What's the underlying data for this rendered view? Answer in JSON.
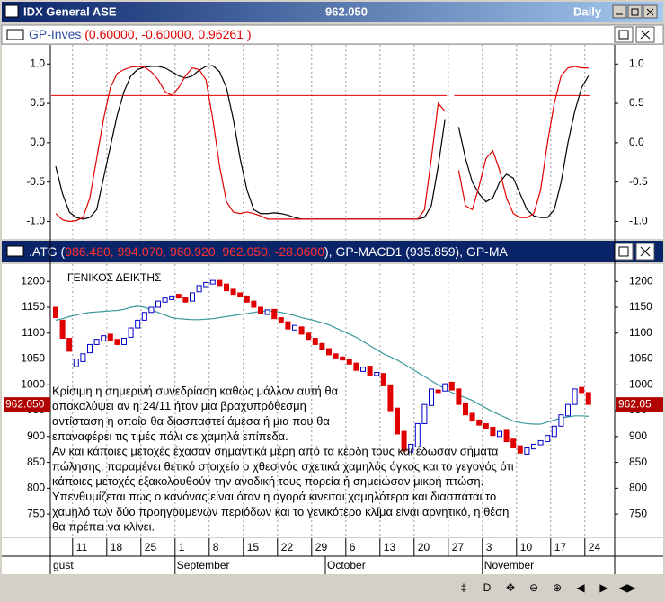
{
  "window": {
    "title": "IDX General ASE",
    "price": "962.050",
    "period": "Daily"
  },
  "oscillator": {
    "name": "GP-Inves",
    "params": "(0.60000, -0.60000, 0.96261 )",
    "ylim": [
      -1.2,
      1.22
    ],
    "yticks": [
      {
        "value": 1,
        "label": "1.0"
      },
      0.5,
      {
        "value": 0,
        "label": "0.0"
      },
      -0.5,
      {
        "value": -1,
        "label": "-1.0"
      }
    ],
    "levels": [
      0.6,
      -0.6
    ],
    "level_color": "#e00000",
    "series": [
      {
        "color": "#000000",
        "values": [
          -0.3,
          -0.65,
          -0.88,
          -0.95,
          -0.97,
          -0.95,
          -0.85,
          -0.45,
          -0.05,
          0.35,
          0.65,
          0.85,
          0.93,
          0.96,
          0.97,
          0.97,
          0.95,
          0.9,
          0.85,
          0.82,
          0.85,
          0.92,
          0.97,
          0.98,
          0.9,
          0.7,
          0.3,
          -0.2,
          -0.6,
          -0.85,
          -0.9,
          -0.9,
          -0.89,
          -0.9,
          -0.92,
          -0.95,
          -0.97,
          -0.97,
          -0.97,
          -0.97,
          -0.97,
          -0.97,
          -0.97,
          -0.97,
          -0.97,
          -0.97,
          -0.97,
          -0.97,
          -0.97,
          -0.97,
          -0.97,
          -0.97,
          -0.97,
          -0.97,
          -0.95,
          -0.8,
          -0.3,
          0.3,
          null,
          0.2,
          -0.2,
          -0.5,
          -0.65,
          -0.75,
          -0.7,
          -0.5,
          -0.4,
          -0.45,
          -0.65,
          -0.85,
          -0.93,
          -0.95,
          -0.95,
          -0.85,
          -0.5,
          0.0,
          0.4,
          0.7,
          0.85
        ]
      },
      {
        "color": "#e00000",
        "values": [
          -0.9,
          -0.98,
          -1.0,
          -0.99,
          -0.95,
          -0.7,
          -0.2,
          0.3,
          0.7,
          0.88,
          0.93,
          0.96,
          0.97,
          0.96,
          0.9,
          0.8,
          0.65,
          0.6,
          0.7,
          0.85,
          0.95,
          0.93,
          0.8,
          0.3,
          -0.3,
          -0.75,
          -0.88,
          -0.9,
          -0.88,
          -0.9,
          -0.93,
          -0.97,
          -0.97,
          -0.97,
          -0.97,
          -0.97,
          -0.97,
          -0.97,
          -0.97,
          -0.97,
          -0.97,
          -0.97,
          -0.97,
          -0.97,
          -0.97,
          -0.97,
          -0.97,
          -0.97,
          -0.97,
          -0.97,
          -0.97,
          -0.97,
          -0.97,
          -0.97,
          -0.85,
          -0.2,
          0.5,
          0.4,
          null,
          -0.35,
          -0.8,
          -0.85,
          -0.55,
          -0.2,
          -0.1,
          -0.35,
          -0.7,
          -0.9,
          -0.95,
          -0.95,
          -0.9,
          -0.6,
          0.0,
          0.5,
          0.85,
          0.95,
          0.97,
          0.95,
          0.95
        ]
      }
    ]
  },
  "price": {
    "header": {
      "symbol": ".ATG (",
      "values": "986.480, 994.070, 960.920, 962.050, -28.0600",
      "rest": "), GP-MACD1 (935.859), GP-MA"
    },
    "ylim": [
      705,
      1230
    ],
    "yticks": [
      1200,
      1150,
      1100,
      1050,
      1000,
      950,
      900,
      850,
      800,
      750
    ],
    "up_color": "#0000cc",
    "down_color": "#e00000",
    "open": [
      1150,
      1125,
      1090,
      1035,
      1045,
      1062,
      1078,
      1085,
      1098,
      1088,
      1078,
      1092,
      1110,
      1125,
      1140,
      1150,
      1160,
      1165,
      1175,
      1170,
      1162,
      1180,
      1190,
      1195,
      1202,
      1195,
      1185,
      1178,
      1172,
      1162,
      1150,
      1136,
      1146,
      1130,
      1122,
      1106,
      1112,
      1100,
      1090,
      1080,
      1070,
      1060,
      1054,
      1050,
      1042,
      1026,
      1036,
      1018,
      1022,
      1000,
      955,
      910,
      870,
      880,
      925,
      960,
      990,
      988,
      1005,
      992,
      965,
      945,
      932,
      925,
      918,
      900,
      912,
      895,
      882,
      866,
      876,
      884,
      890,
      900,
      920,
      940,
      962,
      995,
      985
    ],
    "close": [
      1130,
      1090,
      1065,
      1050,
      1060,
      1078,
      1088,
      1095,
      1085,
      1078,
      1090,
      1110,
      1125,
      1140,
      1150,
      1162,
      1168,
      1172,
      1168,
      1160,
      1178,
      1192,
      1198,
      1202,
      1192,
      1182,
      1175,
      1170,
      1160,
      1150,
      1138,
      1145,
      1128,
      1120,
      1108,
      1115,
      1098,
      1088,
      1078,
      1068,
      1058,
      1052,
      1048,
      1040,
      1028,
      1034,
      1018,
      1024,
      998,
      950,
      905,
      872,
      885,
      925,
      962,
      992,
      985,
      1002,
      990,
      962,
      942,
      930,
      922,
      915,
      902,
      910,
      890,
      878,
      868,
      878,
      885,
      892,
      902,
      920,
      942,
      962,
      992,
      985,
      962.05
    ],
    "ma": {
      "color": "#3a9a9a",
      "values": [
        1125,
        1128,
        1132,
        1135,
        1138,
        1140,
        1141,
        1142,
        1143,
        1144,
        1146,
        1150,
        1152,
        1150,
        1145,
        1140,
        1135,
        1130,
        1128,
        1127,
        1126,
        1126,
        1127,
        1128,
        1130,
        1132,
        1134,
        1136,
        1138,
        1140,
        1142,
        1143,
        1142,
        1140,
        1137,
        1134,
        1130,
        1127,
        1124,
        1120,
        1116,
        1110,
        1104,
        1098,
        1092,
        1084,
        1076,
        1068,
        1060,
        1054,
        1048,
        1040,
        1032,
        1024,
        1016,
        1008,
        1000,
        992,
        985,
        980,
        975,
        970,
        962,
        955,
        948,
        942,
        936,
        930,
        927,
        925,
        924,
        924,
        928,
        932,
        936,
        938,
        940,
        940,
        939
      ]
    },
    "last_labels": [
      "962.050",
      "962.05"
    ],
    "title": "ΓΕΝΙΚΟΣ ΔΕΙΚΤΗΣ",
    "comment": [
      "Κρίσιμη η σημερινή συνεδρίαση καθώς μάλλον αυτή θα",
      "αποκαλύψει αν η 24/11 ήταν μια βραχυπρόθεσμη",
      "αντίσταση η οποία θα διασπαστεί  άμεσα  ή μια που θα",
      "επαναφέρει τις τιμές  πάλι σε χαμηλά επίπεδα.",
      "Αν και κάποιες μετοχές έχασαν σημαντικά μέρη από τα κέρδη τους και έδωσαν σήματα",
      "πώλησης, παραμένει θετικό στοιχείο ο χθεσινός σχετικά χαμηλός όγκος και το γεγονός ότι",
      "κάποιες μετοχές εξακολουθούν την ανοδική τους πορεία ή σημειώσαν μικρή πτώση.",
      "Υπενθυμίζεται πως ο κανόνας είναι όταν  η αγορά κινειται χαμηλότερα και διασπάται  το",
      "χαμηλό των δύο προηγούμενων περιόδων και το γενικότερο κλίμα είναι αρνητικό, η θέση",
      "θα πρέπει να κλίνει."
    ]
  },
  "dates": {
    "ticks": [
      "11",
      "18",
      "25",
      "1",
      "8",
      "15",
      "22",
      "29",
      "6",
      "13",
      "20",
      "27",
      "3",
      "10",
      "17",
      "24"
    ],
    "months": [
      "gust",
      "September",
      "October",
      "November"
    ]
  },
  "toolbar": [
    "‡",
    "D",
    "✥",
    "⊖",
    "⊕",
    "◀",
    "▶",
    "◀▶"
  ]
}
